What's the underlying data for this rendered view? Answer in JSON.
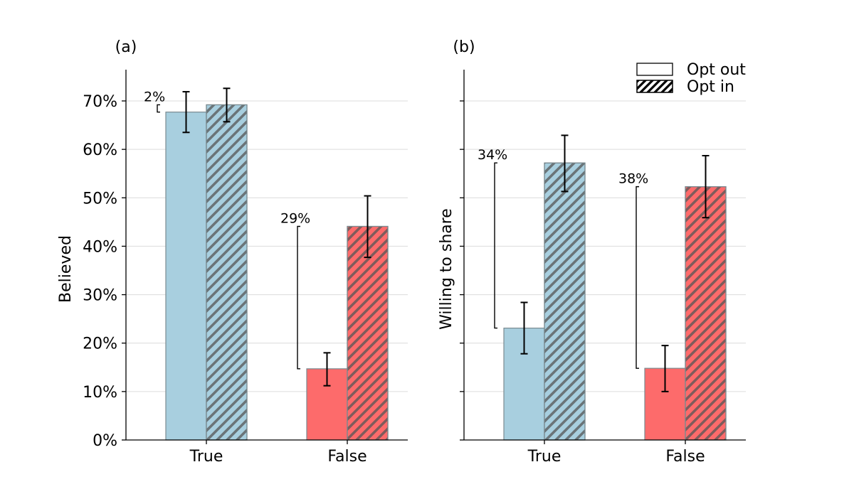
{
  "chart_data": [
    {
      "type": "bar",
      "panel_label": "(a)",
      "ylabel": "Believed",
      "ylim": [
        0,
        76
      ],
      "yticks": [
        0,
        10,
        20,
        30,
        40,
        50,
        60,
        70
      ],
      "ytick_labels": [
        "0%",
        "10%",
        "20%",
        "30%",
        "40%",
        "50%",
        "60%",
        "70%"
      ],
      "grid": "horizontal",
      "categories": [
        "True",
        "False"
      ],
      "category_colors": [
        "#a8cfdf",
        "#fd6b6b"
      ],
      "series": [
        {
          "name": "Opt out",
          "pattern": "solid",
          "values": [
            67.7,
            14.7
          ],
          "error_low": [
            63.5,
            11.2
          ],
          "error_high": [
            71.9,
            18.0
          ]
        },
        {
          "name": "Opt in",
          "pattern": "hatched",
          "values": [
            69.2,
            44.1
          ],
          "error_low": [
            65.7,
            37.7
          ],
          "error_high": [
            72.6,
            50.4
          ]
        }
      ],
      "annotations": [
        {
          "text": "2%",
          "category": "True",
          "from": 67.7,
          "to": 69.2
        },
        {
          "text": "29%",
          "category": "False",
          "from": 14.7,
          "to": 44.1
        }
      ]
    },
    {
      "type": "bar",
      "panel_label": "(b)",
      "ylabel": "Willing to share",
      "ylim": [
        0,
        76
      ],
      "yticks": [
        0,
        10,
        20,
        30,
        40,
        50,
        60,
        70
      ],
      "grid": "horizontal",
      "categories": [
        "True",
        "False"
      ],
      "category_colors": [
        "#a8cfdf",
        "#fd6b6b"
      ],
      "series": [
        {
          "name": "Opt out",
          "pattern": "solid",
          "values": [
            23.1,
            14.8
          ],
          "error_low": [
            17.8,
            10.0
          ],
          "error_high": [
            28.4,
            19.5
          ]
        },
        {
          "name": "Opt in",
          "pattern": "hatched",
          "values": [
            57.2,
            52.3
          ],
          "error_low": [
            51.3,
            45.9
          ],
          "error_high": [
            62.9,
            58.7
          ]
        }
      ],
      "annotations": [
        {
          "text": "34%",
          "category": "True",
          "from": 23.1,
          "to": 57.2
        },
        {
          "text": "38%",
          "category": "False",
          "from": 14.8,
          "to": 52.3
        }
      ],
      "legend": {
        "placement": "top-right",
        "entries": [
          {
            "label": "Opt out",
            "pattern": "solid"
          },
          {
            "label": "Opt in",
            "pattern": "hatched"
          }
        ]
      }
    }
  ]
}
